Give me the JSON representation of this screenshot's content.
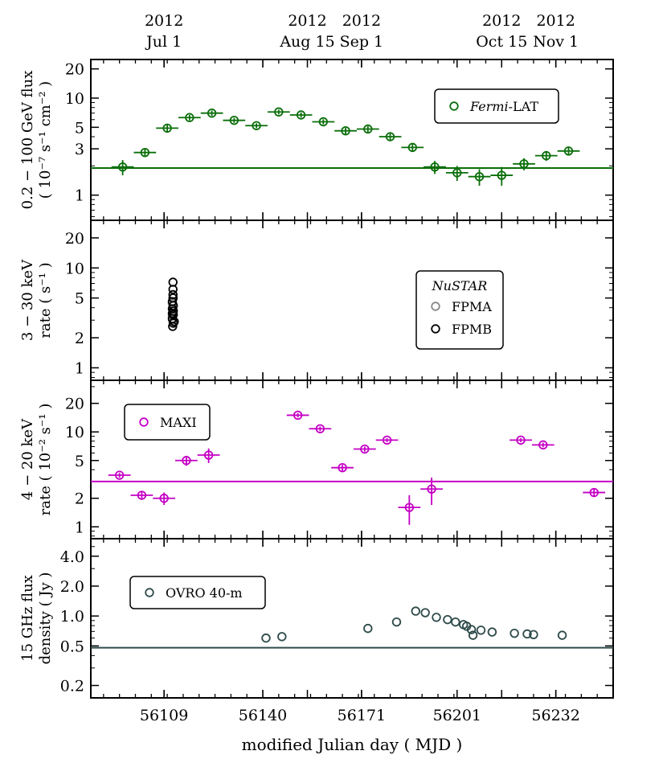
{
  "chart_data": {
    "type": "scatter",
    "xlabel": "modified Julian day ( MJD )",
    "xlim": [
      56086,
      56250
    ],
    "x_ticks": [
      56109,
      56140,
      56171,
      56201,
      56232
    ],
    "date_ticks": [
      {
        "mjd": 56109,
        "year": "2012",
        "date": "Jul 1"
      },
      {
        "mjd": 56154,
        "year": "2012",
        "date": "Aug 15"
      },
      {
        "mjd": 56171,
        "year": "2012",
        "date": "Sep 1"
      },
      {
        "mjd": 56215,
        "year": "2012",
        "date": "Oct 15"
      },
      {
        "mjd": 56232,
        "year": "2012",
        "date": "Nov 1"
      }
    ],
    "panels": [
      {
        "id": "fermi",
        "ylabel_lines": [
          "0.2 − 100 GeV flux",
          "( 10⁻⁷ s⁻¹ cm⁻² )"
        ],
        "scale": "log",
        "ylim": [
          0.55,
          25
        ],
        "y_ticks": [
          1,
          3,
          5,
          10,
          20
        ],
        "y_tick_labels": [
          "1",
          "3",
          "5",
          "10",
          "20"
        ],
        "color": "#0a6e0a",
        "baseline": 1.9,
        "legend": {
          "title": "",
          "entries": [
            {
              "label": "Fermi-LAT",
              "italic_part": "Fermi",
              "rest": "-LAT",
              "color": "#0a6e0a"
            }
          ],
          "position": "top-right"
        },
        "series": [
          {
            "name": "Fermi-LAT",
            "color": "#0a6e0a",
            "xerr": 3.5,
            "points": [
              [
                56096,
                1.95,
                0.35
              ],
              [
                56103,
                2.75,
                0.25
              ],
              [
                56110,
                4.9,
                0.5
              ],
              [
                56117,
                6.3,
                0.4
              ],
              [
                56124,
                7.0,
                0.45
              ],
              [
                56131,
                5.9,
                0.35
              ],
              [
                56138,
                5.2,
                0.3
              ],
              [
                56145,
                7.2,
                0.4
              ],
              [
                56152,
                6.7,
                0.4
              ],
              [
                56159,
                5.7,
                0.35
              ],
              [
                56166,
                4.6,
                0.35
              ],
              [
                56173,
                4.8,
                0.35
              ],
              [
                56180,
                4.0,
                0.35
              ],
              [
                56187,
                3.1,
                0.3
              ],
              [
                56194,
                1.95,
                0.3
              ],
              [
                56201,
                1.7,
                0.3
              ],
              [
                56208,
                1.55,
                0.3
              ],
              [
                56215,
                1.6,
                0.35
              ],
              [
                56222,
                2.1,
                0.3
              ],
              [
                56229,
                2.55,
                0.3
              ],
              [
                56236,
                2.85,
                0.3
              ]
            ]
          }
        ]
      },
      {
        "id": "nustar",
        "ylabel_lines": [
          "3 − 30 keV",
          "rate ( s⁻¹ )"
        ],
        "scale": "log",
        "ylim": [
          0.75,
          30
        ],
        "y_ticks": [
          1,
          2,
          5,
          10,
          20
        ],
        "y_tick_labels": [
          "1",
          "2",
          "5",
          "10",
          "20"
        ],
        "legend": {
          "title": "NuSTAR",
          "entries": [
            {
              "label": "FPMA",
              "color": "#888888"
            },
            {
              "label": "FPMB",
              "color": "#000000"
            }
          ],
          "position": "right"
        },
        "series": [
          {
            "name": "FPMA",
            "color": "#888888",
            "xerr": 0,
            "points": [
              [
                56111.6,
                3.3,
                0
              ],
              [
                56111.8,
                3.9,
                0
              ],
              [
                56111.6,
                4.4,
                0
              ],
              [
                56111.9,
                5.0,
                0
              ],
              [
                56111.7,
                3.0,
                0
              ]
            ]
          },
          {
            "name": "FPMB",
            "color": "#000000",
            "xerr": 0,
            "points": [
              [
                56111.8,
                7.2,
                0
              ],
              [
                56111.8,
                6.1,
                0
              ],
              [
                56111.8,
                5.4,
                0
              ],
              [
                56111.8,
                5.0,
                0
              ],
              [
                56111.6,
                4.6,
                0
              ],
              [
                56111.9,
                4.2,
                0
              ],
              [
                56111.6,
                3.9,
                0
              ],
              [
                56111.9,
                3.7,
                0
              ],
              [
                56111.6,
                3.5,
                0
              ],
              [
                56111.9,
                3.4,
                0
              ],
              [
                56111.6,
                3.1,
                0
              ],
              [
                56112.2,
                2.9,
                0
              ],
              [
                56111.7,
                2.6,
                0
              ],
              [
                56111.9,
                2.8,
                0
              ]
            ]
          }
        ]
      },
      {
        "id": "maxi",
        "ylabel_lines": [
          "4 − 20 keV",
          "rate ( 10⁻² s⁻¹ )"
        ],
        "scale": "log",
        "ylim": [
          0.75,
          35
        ],
        "y_ticks": [
          1,
          2,
          5,
          10,
          20
        ],
        "y_tick_labels": [
          "1",
          "2",
          "5",
          "10",
          "20"
        ],
        "color": "#c400c4",
        "baseline": 3.0,
        "legend": {
          "title": "",
          "entries": [
            {
              "label": "MAXI",
              "color": "#c400c4"
            }
          ],
          "position": "top-left"
        },
        "series": [
          {
            "name": "MAXI",
            "color": "#c400c4",
            "xerr": 3.5,
            "points": [
              [
                56095,
                3.5,
                0.2
              ],
              [
                56102,
                2.15,
                0.2
              ],
              [
                56109,
                2.0,
                0.3
              ],
              [
                56116,
                5.0,
                0.6
              ],
              [
                56123,
                5.7,
                1.0
              ],
              [
                56151,
                15.0,
                0.8
              ],
              [
                56158,
                10.8,
                0.6
              ],
              [
                56165,
                4.2,
                0.3
              ],
              [
                56172,
                6.6,
                0.4
              ],
              [
                56179,
                8.2,
                0.4
              ],
              [
                56186,
                1.6,
                0.55
              ],
              [
                56193,
                2.5,
                0.8
              ],
              [
                56221,
                8.2,
                0.4
              ],
              [
                56228,
                7.3,
                0.4
              ],
              [
                56244,
                2.3,
                0.2
              ]
            ]
          }
        ]
      },
      {
        "id": "ovro",
        "ylabel_lines": [
          "15 GHz flux",
          "density ( Jy )"
        ],
        "scale": "log",
        "ylim": [
          0.15,
          6.0
        ],
        "y_ticks": [
          0.2,
          0.5,
          1.0,
          2.0,
          4.0
        ],
        "y_tick_labels": [
          "0.2",
          "0.5",
          "1.0",
          "2.0",
          "4.0"
        ],
        "color": "#2e4a4a",
        "baseline": 0.48,
        "legend": {
          "title": "",
          "entries": [
            {
              "label": "OVRO 40-m",
              "color": "#2e4a4a"
            }
          ],
          "position": "top-left"
        },
        "series": [
          {
            "name": "OVRO 40-m",
            "color": "#2e4a4a",
            "xerr": 0,
            "points": [
              [
                56141,
                0.6,
                0
              ],
              [
                56146,
                0.62,
                0
              ],
              [
                56173,
                0.75,
                0
              ],
              [
                56182,
                0.87,
                0
              ],
              [
                56188,
                1.12,
                0
              ],
              [
                56191,
                1.08,
                0
              ],
              [
                56194.5,
                0.97,
                0
              ],
              [
                56198,
                0.92,
                0
              ],
              [
                56200.5,
                0.87,
                0
              ],
              [
                56203,
                0.82,
                0
              ],
              [
                56204,
                0.79,
                0
              ],
              [
                56205.5,
                0.73,
                0
              ],
              [
                56206,
                0.64,
                0
              ],
              [
                56208.5,
                0.72,
                0
              ],
              [
                56212,
                0.69,
                0
              ],
              [
                56219,
                0.67,
                0
              ],
              [
                56223,
                0.66,
                0
              ],
              [
                56225,
                0.65,
                0
              ],
              [
                56234,
                0.64,
                0
              ]
            ]
          }
        ]
      }
    ]
  }
}
